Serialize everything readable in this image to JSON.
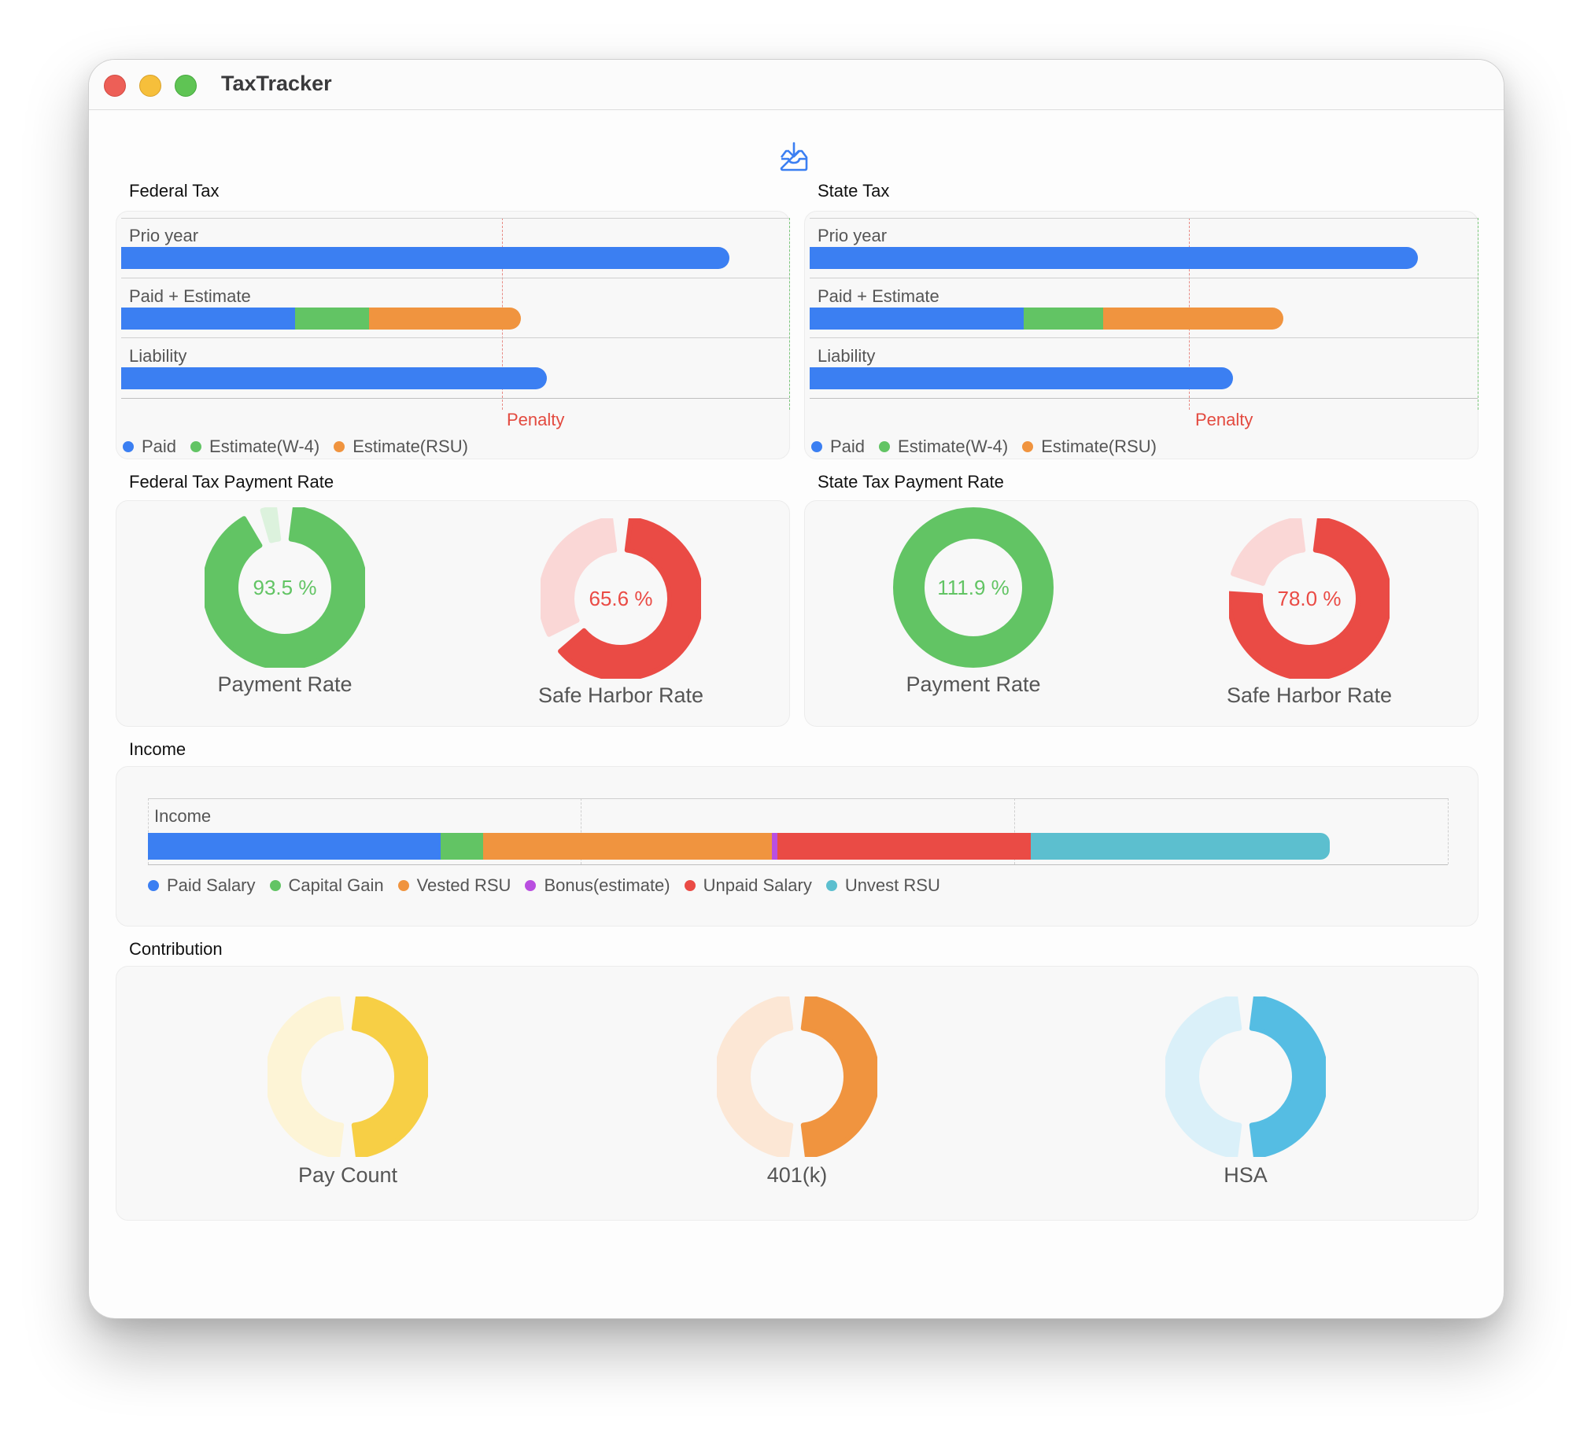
{
  "window": {
    "title": "TaxTracker"
  },
  "toolbar": {
    "export_icon": "tray-arrow-down-icon"
  },
  "colors": {
    "paid": "#3b7ff2",
    "estimate_w4": "#62c464",
    "estimate_rsu": "#f0943f",
    "penalty": "#e34a3f",
    "bonus": "#b94fe0",
    "unpaid": "#ea4b45",
    "unvest": "#5cbfcf",
    "pay_count": "#f7cf45",
    "k401": "#f0943f",
    "hsa": "#55bde3"
  },
  "federal_tax": {
    "title": "Federal Tax",
    "rows": [
      {
        "label": "Prio year"
      },
      {
        "label": "Paid + Estimate"
      },
      {
        "label": "Liability"
      }
    ],
    "penalty_label": "Penalty",
    "legend": [
      "Paid",
      "Estimate(W-4)",
      "Estimate(RSU)"
    ]
  },
  "state_tax": {
    "title": "State Tax",
    "rows": [
      {
        "label": "Prio year"
      },
      {
        "label": "Paid + Estimate"
      },
      {
        "label": "Liability"
      }
    ],
    "penalty_label": "Penalty",
    "legend": [
      "Paid",
      "Estimate(W-4)",
      "Estimate(RSU)"
    ]
  },
  "federal_rate": {
    "title": "Federal Tax Payment Rate",
    "payment_rate": {
      "label": "Payment Rate",
      "value_text": "93.5 %",
      "fraction": 0.935
    },
    "safe_harbor": {
      "label": "Safe Harbor Rate",
      "value_text": "65.6 %",
      "fraction": 0.656
    }
  },
  "state_rate": {
    "title": "State Tax Payment Rate",
    "payment_rate": {
      "label": "Payment Rate",
      "value_text": "111.9 %",
      "fraction": 1.0
    },
    "safe_harbor": {
      "label": "Safe Harbor Rate",
      "value_text": "78.0 %",
      "fraction": 0.78
    }
  },
  "income": {
    "title": "Income",
    "row_label": "Income",
    "legend": [
      "Paid Salary",
      "Capital Gain",
      "Vested RSU",
      "Bonus(estimate)",
      "Unpaid Salary",
      "Unvest RSU"
    ]
  },
  "contribution": {
    "title": "Contribution",
    "items": [
      {
        "label": "Pay Count",
        "fraction": 0.5
      },
      {
        "label": "401(k)",
        "fraction": 0.5
      },
      {
        "label": "HSA",
        "fraction": 0.5
      }
    ]
  },
  "chart_data": [
    {
      "type": "bar",
      "title": "Federal Tax",
      "orientation": "horizontal",
      "categories": [
        "Prio year",
        "Paid + Estimate",
        "Liability"
      ],
      "series": [
        {
          "name": "Paid",
          "values": [
            0.91,
            0.26,
            0.637
          ]
        },
        {
          "name": "Estimate(W-4)",
          "values": [
            0,
            0.111,
            0
          ]
        },
        {
          "name": "Estimate(RSU)",
          "values": [
            0,
            0.227,
            0
          ]
        }
      ],
      "penalty_threshold": 0.574,
      "xlim": [
        0,
        1
      ]
    },
    {
      "type": "bar",
      "title": "State Tax",
      "orientation": "horizontal",
      "categories": [
        "Prio year",
        "Paid + Estimate",
        "Liability"
      ],
      "series": [
        {
          "name": "Paid",
          "values": [
            0.91,
            0.32,
            0.634
          ]
        },
        {
          "name": "Estimate(W-4)",
          "values": [
            0,
            0.119,
            0
          ]
        },
        {
          "name": "Estimate(RSU)",
          "values": [
            0,
            0.27,
            0
          ]
        }
      ],
      "penalty_threshold": 0.571,
      "xlim": [
        0,
        1
      ]
    },
    {
      "type": "bar",
      "title": "Income",
      "orientation": "horizontal",
      "categories": [
        "Income"
      ],
      "series": [
        {
          "name": "Paid Salary",
          "values": [
            0.225
          ]
        },
        {
          "name": "Capital Gain",
          "values": [
            0.033
          ]
        },
        {
          "name": "Vested RSU",
          "values": [
            0.222
          ]
        },
        {
          "name": "Bonus(estimate)",
          "values": [
            0.004
          ]
        },
        {
          "name": "Unpaid Salary",
          "values": [
            0.195
          ]
        },
        {
          "name": "Unvest RSU",
          "values": [
            0.23
          ]
        }
      ],
      "xlim": [
        0,
        1
      ]
    }
  ]
}
